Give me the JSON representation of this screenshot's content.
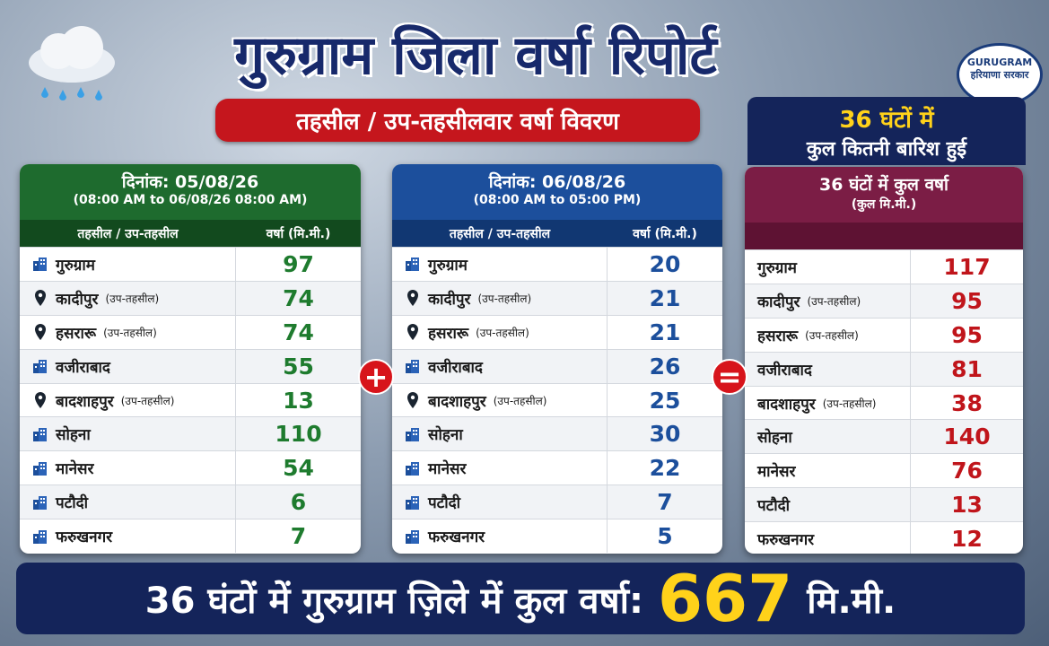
{
  "header": {
    "title": "गुरुग्राम जिला वर्षा रिपोर्ट",
    "subtitle": "तहसील / उप-तहसीलवार वर्षा विवरण"
  },
  "logo": {
    "name": "GURUGRAM",
    "text": "हरियाणा सरकार"
  },
  "summary_box": {
    "line1": "36 घंटों में",
    "line2": "कुल कितनी बारिश हुई"
  },
  "operators": [
    "+",
    "="
  ],
  "tables": [
    {
      "date": "दिनांक: 05/08/26",
      "period": "(08:00 AM to 06/08/26 08:00 AM)",
      "columns": [
        "तहसील / उप-तहसील",
        "वर्षा (मि.मी.)"
      ],
      "rows": [
        {
          "name": "गुरुग्राम",
          "value": 97
        },
        {
          "name": "कादीपुर",
          "note": "(उप-तहसील)",
          "value": 74
        },
        {
          "name": "हसरारू",
          "note": "(उप-तहसील)",
          "value": 74
        },
        {
          "name": "वजीराबाद",
          "value": 55
        },
        {
          "name": "बादशाहपुर",
          "note": "(उप-तहसील)",
          "value": 13
        },
        {
          "name": "सोहना",
          "value": 110
        },
        {
          "name": "मानेसर",
          "value": 54
        },
        {
          "name": "पटौदी",
          "value": 6
        },
        {
          "name": "फरुखनगर",
          "value": 7
        }
      ]
    },
    {
      "date": "दिनांक: 06/08/26",
      "period": "(08:00 AM to 05:00 PM)",
      "columns": [
        "तहसील / उप-तहसील",
        "वर्षा (मि.मी.)"
      ],
      "rows": [
        {
          "name": "गुरुग्राम",
          "value": 20
        },
        {
          "name": "कादीपुर",
          "note": "(उप-तहसील)",
          "value": 21
        },
        {
          "name": "हसरारू",
          "note": "(उप-तहसील)",
          "value": 21
        },
        {
          "name": "वजीराबाद",
          "value": 26
        },
        {
          "name": "बादशाहपुर",
          "note": "(उप-तहसील)",
          "value": 25
        },
        {
          "name": "सोहना",
          "value": 30
        },
        {
          "name": "मानेसर",
          "value": 22
        },
        {
          "name": "पटौदी",
          "value": 7
        },
        {
          "name": "फरुखनगर",
          "value": 5
        }
      ]
    },
    {
      "title": "36 घंटों में कुल वर्षा",
      "unit": "(कुल मि.मी.)",
      "rows": [
        {
          "name": "गुरुग्राम",
          "value": 117
        },
        {
          "name": "कादीपुर",
          "note": "(उप-तहसील)",
          "value": 95
        },
        {
          "name": "हसरारू",
          "note": "(उप-तहसील)",
          "value": 95
        },
        {
          "name": "वजीराबाद",
          "value": 81
        },
        {
          "name": "बादशाहपुर",
          "note": "(उप-तहसील)",
          "value": 38
        },
        {
          "name": "सोहना",
          "value": 140
        },
        {
          "name": "मानेसर",
          "value": 76
        },
        {
          "name": "पटौदी",
          "value": 13
        },
        {
          "name": "फरुखनगर",
          "value": 12
        }
      ]
    }
  ],
  "footer": {
    "text": "36 घंटों में गुरुग्राम ज़िले में कुल वर्षा:",
    "value": 667,
    "unit": "मि.मी."
  }
}
